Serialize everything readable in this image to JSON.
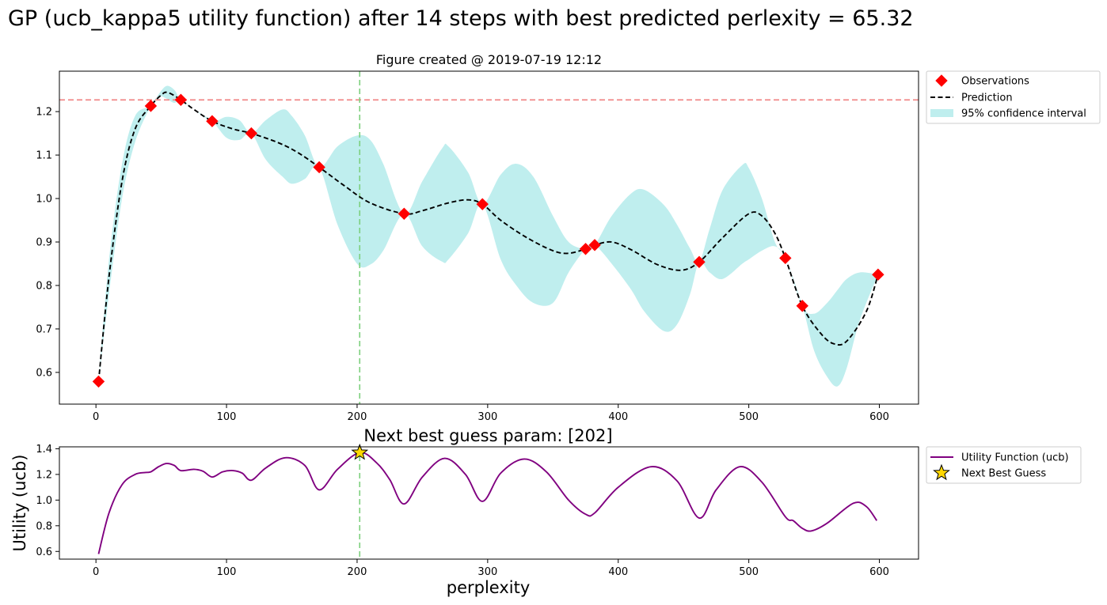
{
  "figure": {
    "suptitle": "GP (ucb_kappa5 utility function) after 14 steps with best predicted perlexity = 65.32"
  },
  "chart_data": [
    {
      "type": "line",
      "title": "Figure created @ 2019-07-19 12:12",
      "xlabel": "",
      "ylabel": "",
      "xlim": [
        -28,
        630
      ],
      "ylim": [
        0.527,
        1.293
      ],
      "xticks": [
        "0",
        "100",
        "200",
        "300",
        "400",
        "500",
        "600"
      ],
      "yticks": [
        "0.6",
        "0.7",
        "0.8",
        "0.9",
        "1.0",
        "1.1",
        "1.2"
      ],
      "legend_position": "outside-top-right",
      "legend": [
        "Observations",
        "Prediction",
        "95% confidence interval"
      ],
      "best_value_line": {
        "y": 1.227,
        "color": "#f08080",
        "style": "dashed"
      },
      "next_guess_line": {
        "x": 202,
        "color": "#7ccf7c",
        "style": "dashed"
      },
      "observations": {
        "name": "Observations",
        "color": "#ff0000",
        "marker": "diamond",
        "x": [
          2,
          42,
          65,
          89,
          119,
          171,
          236,
          296,
          375,
          382,
          462,
          528,
          541,
          599
        ],
        "y": [
          0.579,
          1.213,
          1.227,
          1.178,
          1.15,
          1.072,
          0.965,
          0.987,
          0.884,
          0.893,
          0.854,
          0.863,
          0.753,
          0.825
        ]
      },
      "prediction": {
        "name": "Prediction",
        "color": "#000000",
        "style": "dashed",
        "x": [
          2,
          10,
          20,
          30,
          42,
          50,
          55,
          65,
          75,
          89,
          105,
          119,
          140,
          155,
          171,
          190,
          210,
          236,
          250,
          270,
          285,
          296,
          310,
          330,
          350,
          362,
          375,
          382,
          395,
          410,
          430,
          448,
          462,
          480,
          500,
          510,
          520,
          528,
          541,
          555,
          565,
          575,
          590,
          599
        ],
        "y": [
          0.579,
          0.82,
          1.04,
          1.16,
          1.213,
          1.238,
          1.244,
          1.227,
          1.205,
          1.178,
          1.16,
          1.15,
          1.128,
          1.105,
          1.072,
          1.03,
          0.99,
          0.965,
          0.972,
          0.99,
          0.997,
          0.987,
          0.95,
          0.91,
          0.88,
          0.874,
          0.884,
          0.893,
          0.9,
          0.882,
          0.848,
          0.835,
          0.854,
          0.91,
          0.965,
          0.96,
          0.92,
          0.863,
          0.753,
          0.69,
          0.666,
          0.672,
          0.74,
          0.825
        ]
      },
      "confidence_interval": {
        "name": "95% confidence interval",
        "color": "#bfeeee",
        "x": [
          2,
          10,
          20,
          30,
          42,
          48,
          54,
          60,
          65,
          75,
          89,
          100,
          110,
          119,
          130,
          143,
          150,
          160,
          171,
          185,
          200,
          210,
          220,
          236,
          250,
          265,
          270,
          285,
          296,
          310,
          322,
          335,
          350,
          362,
          375,
          382,
          395,
          410,
          420,
          435,
          445,
          455,
          462,
          470,
          480,
          495,
          500,
          510,
          520,
          528,
          541,
          550,
          560,
          568,
          575,
          585,
          599
        ],
        "upper": [
          0.579,
          0.86,
          1.08,
          1.19,
          1.213,
          1.24,
          1.259,
          1.25,
          1.227,
          1.205,
          1.178,
          1.188,
          1.18,
          1.15,
          1.18,
          1.205,
          1.19,
          1.145,
          1.072,
          1.12,
          1.145,
          1.135,
          1.08,
          0.965,
          1.04,
          1.115,
          1.12,
          1.06,
          0.987,
          1.055,
          1.08,
          1.05,
          0.96,
          0.9,
          0.884,
          0.893,
          0.96,
          1.012,
          1.02,
          0.985,
          0.94,
          0.885,
          0.854,
          0.93,
          1.02,
          1.077,
          1.07,
          1.0,
          0.9,
          0.863,
          0.753,
          0.735,
          0.76,
          0.79,
          0.815,
          0.83,
          0.825
        ],
        "lower": [
          0.579,
          0.78,
          1.0,
          1.13,
          1.213,
          1.235,
          1.23,
          1.22,
          1.227,
          1.205,
          1.178,
          1.14,
          1.135,
          1.15,
          1.09,
          1.05,
          1.034,
          1.045,
          1.072,
          0.94,
          0.85,
          0.848,
          0.88,
          0.965,
          0.89,
          0.855,
          0.86,
          0.92,
          0.987,
          0.86,
          0.8,
          0.76,
          0.76,
          0.83,
          0.884,
          0.893,
          0.85,
          0.79,
          0.74,
          0.695,
          0.71,
          0.78,
          0.854,
          0.83,
          0.815,
          0.85,
          0.86,
          0.88,
          0.89,
          0.863,
          0.753,
          0.65,
          0.59,
          0.568,
          0.61,
          0.72,
          0.825
        ]
      }
    },
    {
      "type": "line",
      "title": "Next best guess param: [202]",
      "xlabel": "perplexity",
      "ylabel": "Utility (ucb)",
      "xlim": [
        -28,
        630
      ],
      "ylim": [
        0.54,
        1.415
      ],
      "xticks": [
        "0",
        "100",
        "200",
        "300",
        "400",
        "500",
        "600"
      ],
      "yticks": [
        "0.6",
        "0.8",
        "1.0",
        "1.2",
        "1.4"
      ],
      "legend_position": "outside-top-right",
      "legend": [
        "Utility Function (ucb)",
        "Next Best Guess"
      ],
      "next_guess_line": {
        "x": 202,
        "color": "#7ccf7c",
        "style": "dashed"
      },
      "utility": {
        "name": "Utility Function (ucb)",
        "color": "#800080",
        "x": [
          2,
          10,
          20,
          30,
          38,
          42,
          48,
          54,
          60,
          65,
          75,
          82,
          89,
          97,
          105,
          112,
          119,
          130,
          145,
          160,
          171,
          185,
          202,
          215,
          225,
          236,
          250,
          267,
          283,
          296,
          310,
          328,
          345,
          362,
          375,
          382,
          400,
          425,
          445,
          462,
          475,
          493,
          510,
          528,
          534,
          541,
          548,
          560,
          580,
          590,
          598
        ],
        "y": [
          0.58,
          0.9,
          1.12,
          1.2,
          1.215,
          1.22,
          1.26,
          1.285,
          1.27,
          1.23,
          1.24,
          1.225,
          1.18,
          1.22,
          1.23,
          1.21,
          1.155,
          1.25,
          1.33,
          1.27,
          1.08,
          1.24,
          1.37,
          1.29,
          1.16,
          0.97,
          1.18,
          1.325,
          1.2,
          0.99,
          1.21,
          1.32,
          1.22,
          1.0,
          0.89,
          0.9,
          1.1,
          1.26,
          1.15,
          0.86,
          1.08,
          1.26,
          1.14,
          0.87,
          0.84,
          0.78,
          0.76,
          0.82,
          0.975,
          0.95,
          0.84
        ]
      },
      "next_best": {
        "name": "Next Best Guess",
        "x": 202,
        "y": 1.37,
        "color": "#ffd700"
      }
    }
  ]
}
